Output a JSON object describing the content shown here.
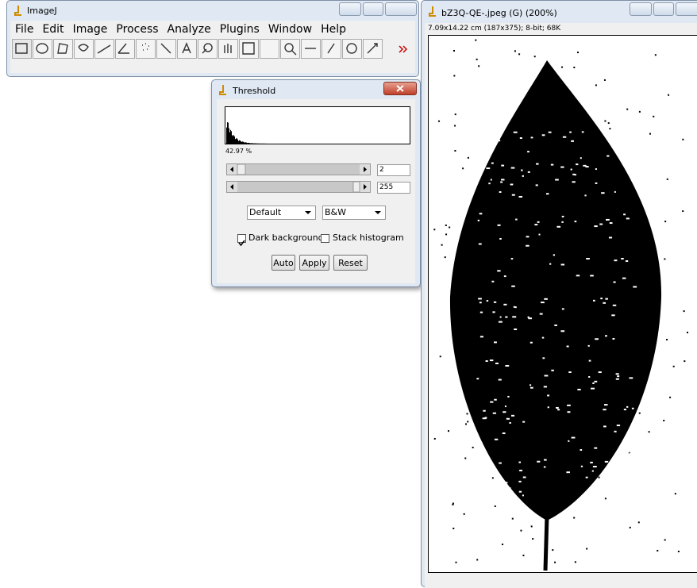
{
  "imagej_window": {
    "title": "ImageJ",
    "menu": [
      "File",
      "Edit",
      "Image",
      "Process",
      "Analyze",
      "Plugins",
      "Window",
      "Help"
    ]
  },
  "threshold_dialog": {
    "title": "Threshold",
    "percentage": "42.97 %",
    "min_value": "2",
    "max_value": "255",
    "method": "Default",
    "mode": "B&W",
    "checkboxes": [
      "Dark background",
      "Stack histogram"
    ],
    "buttons": [
      "Auto",
      "Apply",
      "Reset"
    ]
  },
  "image_window": {
    "title": "bZ3Q-QE-.jpeg (G) (200%)",
    "info": "7.09x14.22 cm (187x375); 8-bit; 68K"
  }
}
